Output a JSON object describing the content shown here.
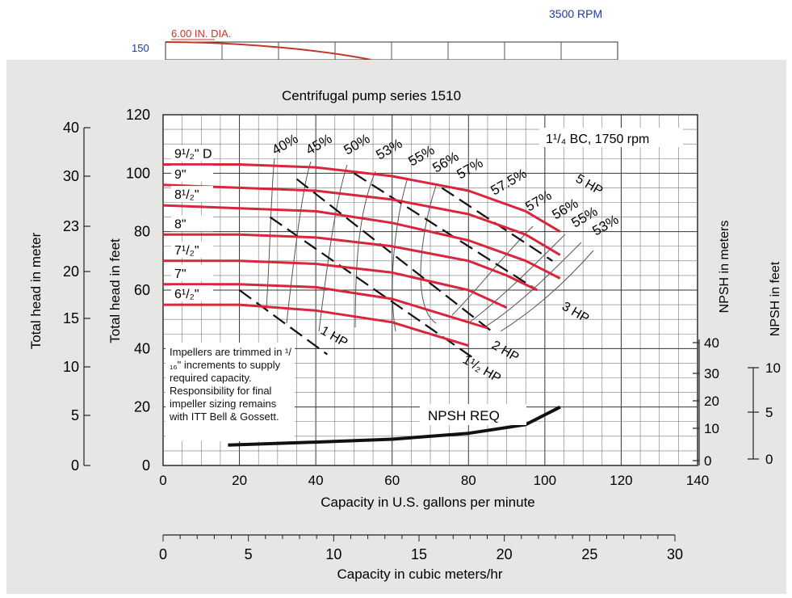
{
  "header": {
    "rpm_label": "3500 RPM",
    "head_150": "150",
    "dia_label": "6.00 IN. DIA."
  },
  "chart_data": {
    "type": "line",
    "title": "Centrifugal pump series 1510",
    "model_label": "1¹/₄ BC, 1750 rpm",
    "xlabel": "Capacity in U.S. gallons per minute",
    "ylabel": "Total head in feet",
    "xlim": [
      0,
      140
    ],
    "ylim": [
      0,
      120
    ],
    "x_ticks": [
      "0",
      "20",
      "40",
      "60",
      "80",
      "100",
      "120",
      "140"
    ],
    "y_ticks": [
      "0",
      "20",
      "40",
      "60",
      "80",
      "100",
      "120"
    ],
    "grid": true,
    "secondary_axes": {
      "meters_head": {
        "label": "Total head in meter",
        "ticks": [
          "0",
          "5",
          "10",
          "15",
          "20",
          "23",
          "30",
          "40"
        ]
      },
      "npsh_meters": {
        "label": "NPSH in meters",
        "ticks": [
          "0",
          "10",
          "20",
          "30",
          "40"
        ]
      },
      "npsh_feet": {
        "label": "NPSH in feet",
        "ticks": [
          "0",
          "5",
          "10"
        ]
      },
      "cubic_meters": {
        "label": "Capacity in cubic meters/hr",
        "ticks": [
          "0",
          "5",
          "10",
          "15",
          "20",
          "25",
          "30"
        ],
        "range": [
          0,
          30
        ]
      }
    },
    "series": [
      {
        "name": "9¹/₂\" D",
        "x": [
          0,
          20,
          40,
          60,
          80,
          95,
          104
        ],
        "y": [
          103,
          103,
          102,
          99,
          94,
          87,
          80
        ]
      },
      {
        "name": "9\"",
        "x": [
          0,
          20,
          40,
          60,
          80,
          95,
          104
        ],
        "y": [
          96,
          95,
          94,
          91,
          86,
          79,
          72
        ]
      },
      {
        "name": "8¹/₂\"",
        "x": [
          0,
          20,
          40,
          60,
          80,
          95,
          104
        ],
        "y": [
          89,
          88,
          87,
          83,
          77,
          70,
          64
        ]
      },
      {
        "name": "8\"",
        "x": [
          0,
          20,
          40,
          60,
          80,
          90,
          98
        ],
        "y": [
          79,
          79,
          78,
          75,
          70,
          65,
          60
        ]
      },
      {
        "name": "7¹/₂\"",
        "x": [
          0,
          20,
          40,
          60,
          80,
          90
        ],
        "y": [
          70,
          70,
          69,
          66,
          60,
          54
        ]
      },
      {
        "name": "7\"",
        "x": [
          0,
          20,
          40,
          60,
          75,
          85
        ],
        "y": [
          62,
          62,
          61,
          57,
          51,
          47
        ]
      },
      {
        "name": "6¹/₂\"",
        "x": [
          0,
          20,
          40,
          60,
          70,
          80
        ],
        "y": [
          55,
          55,
          53,
          49,
          45,
          41
        ]
      },
      {
        "name": "NPSH REQ",
        "x": [
          17,
          40,
          60,
          80,
          95,
          104
        ],
        "y": [
          7,
          8,
          9,
          11,
          14,
          20
        ]
      }
    ],
    "efficiency_labels": [
      "40%",
      "45%",
      "50%",
      "53%",
      "55%",
      "56%",
      "57%",
      "57.5%",
      "57%",
      "56%",
      "55%",
      "53%"
    ],
    "hp_lines": [
      {
        "label": "1 HP",
        "x": [
          20,
          43
        ],
        "y": [
          60,
          38
        ]
      },
      {
        "label": "1¹/₂ HP",
        "x": [
          28,
          81
        ],
        "y": [
          85,
          37
        ]
      },
      {
        "label": "2 HP",
        "x": [
          35,
          86
        ],
        "y": [
          98,
          46
        ]
      },
      {
        "label": "3 HP",
        "x": [
          50,
          98
        ],
        "y": [
          100,
          60
        ]
      },
      {
        "label": "5 HP",
        "x": [
          73,
          102
        ],
        "y": [
          95,
          70
        ]
      }
    ],
    "annotations": {
      "note": "Impellers are trimmed in ¹/₁₆\" increments to supply required capacity. Responsibility for final impeller sizing remains with ITT Bell & Gossett.",
      "npsh_label": "NPSH REQ"
    },
    "colors": {
      "curve": "#d7263d",
      "npsh": "#111111",
      "grid": "#555555",
      "background": "#e5e5e5"
    }
  }
}
